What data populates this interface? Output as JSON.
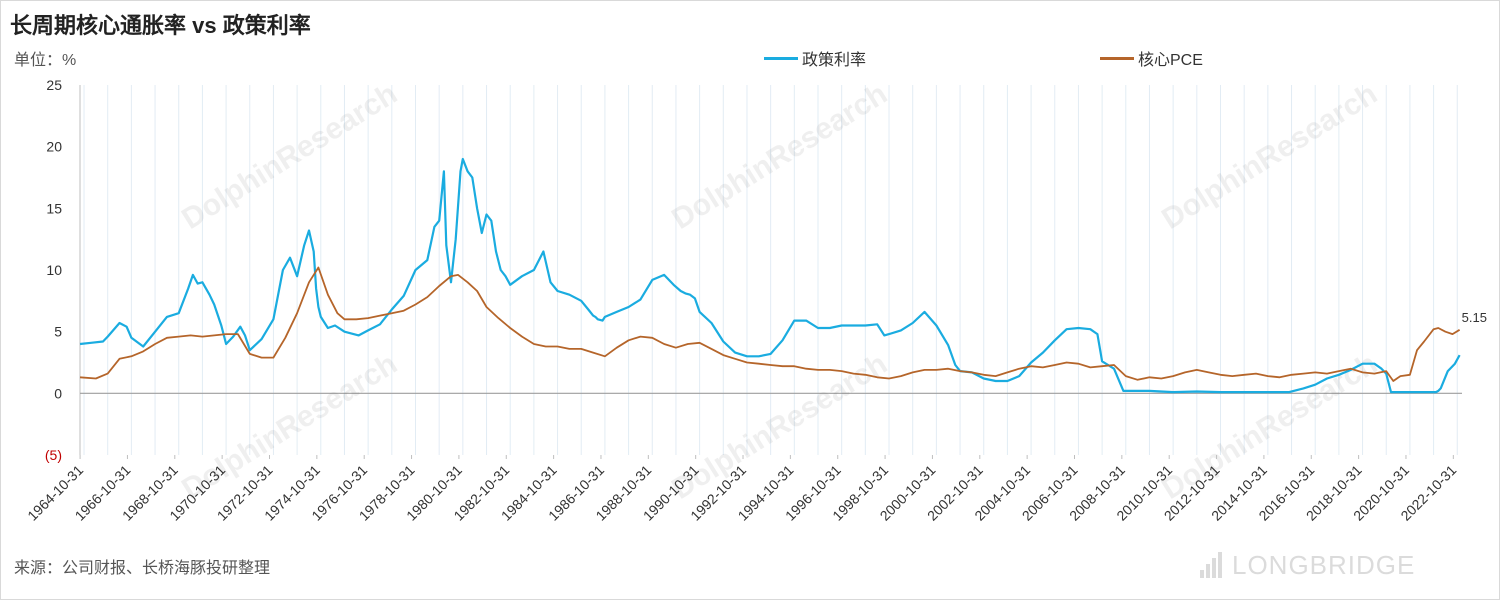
{
  "header": {
    "title": "长周期核心通胀率 vs 政策利率",
    "unit": "单位：%",
    "source": "来源：公司财报、长桥海豚投研整理"
  },
  "legend": {
    "policy_label": "政策利率",
    "pce_label": "核心PCE"
  },
  "watermark": {
    "brand": "LONGBRIDGE"
  },
  "colors": {
    "policy": "#1aace0",
    "pce": "#b5652a",
    "negative_label": "#c00000",
    "grid": "#e2ecf4"
  },
  "chart_data": {
    "type": "line",
    "title": "长周期核心通胀率 vs 政策利率",
    "ylabel": "单位：%",
    "xlabel": "",
    "ylim": [
      -5,
      25
    ],
    "y_ticks": [
      {
        "value": 25,
        "label": "25"
      },
      {
        "value": 20,
        "label": "20"
      },
      {
        "value": 15,
        "label": "15"
      },
      {
        "value": 10,
        "label": "10"
      },
      {
        "value": 5,
        "label": "5"
      },
      {
        "value": 0,
        "label": "0"
      },
      {
        "value": -5,
        "label": "(5)"
      }
    ],
    "x_range": [
      1964.83,
      2023.2
    ],
    "x_tick_labels": [
      "1964-10-31",
      "1966-10-31",
      "1968-10-31",
      "1970-10-31",
      "1972-10-31",
      "1974-10-31",
      "1976-10-31",
      "1978-10-31",
      "1980-10-31",
      "1982-10-31",
      "1984-10-31",
      "1986-10-31",
      "1988-10-31",
      "1990-10-31",
      "1992-10-31",
      "1994-10-31",
      "1996-10-31",
      "1998-10-31",
      "2000-10-31",
      "2002-10-31",
      "2004-10-31",
      "2006-10-31",
      "2008-10-31",
      "2010-10-31",
      "2012-10-31",
      "2014-10-31",
      "2016-10-31",
      "2018-10-31",
      "2020-10-31",
      "2022-10-31"
    ],
    "grid": true,
    "legend_position": "top",
    "end_label": "5.15",
    "series": [
      {
        "name": "政策利率",
        "x": [
          1964.83,
          1965.3,
          1965.8,
          1966.0,
          1966.5,
          1966.8,
          1967.0,
          1967.5,
          1968.0,
          1968.5,
          1969.0,
          1969.4,
          1969.6,
          1969.8,
          1970.0,
          1970.3,
          1970.5,
          1970.8,
          1971.0,
          1971.3,
          1971.6,
          1971.8,
          1972.0,
          1972.5,
          1973.0,
          1973.4,
          1973.7,
          1974.0,
          1974.3,
          1974.5,
          1974.7,
          1974.8,
          1974.9,
          1975.0,
          1975.3,
          1975.6,
          1976.0,
          1976.6,
          1977.0,
          1977.5,
          1978.0,
          1978.5,
          1979.0,
          1979.5,
          1979.8,
          1980.0,
          1980.2,
          1980.3,
          1980.5,
          1980.7,
          1980.9,
          1981.0,
          1981.2,
          1981.4,
          1981.6,
          1981.8,
          1982.0,
          1982.2,
          1982.4,
          1982.6,
          1982.8,
          1983.0,
          1983.5,
          1984.0,
          1984.4,
          1984.7,
          1985.0,
          1985.5,
          1986.0,
          1986.3,
          1986.5,
          1986.6,
          1986.7,
          1986.9,
          1987.0,
          1987.5,
          1988.0,
          1988.5,
          1989.0,
          1989.5,
          1989.9,
          1990.2,
          1990.4,
          1990.6,
          1990.8,
          1991.0,
          1991.5,
          1992.0,
          1992.5,
          1993.0,
          1993.5,
          1994.0,
          1994.5,
          1995.0,
          1995.5,
          1996.0,
          1996.5,
          1997.0,
          1997.5,
          1998.0,
          1998.5,
          1998.8,
          1999.0,
          1999.5,
          2000.0,
          2000.5,
          2001.0,
          2001.5,
          2001.8,
          2002.0,
          2002.5,
          2003.0,
          2003.5,
          2004.0,
          2004.5,
          2005.0,
          2005.5,
          2006.0,
          2006.5,
          2007.0,
          2007.5,
          2007.8,
          2008.0,
          2008.5,
          2008.9,
          2009.5,
          2010.0,
          2011.0,
          2012.0,
          2013.0,
          2014.0,
          2015.0,
          2015.9,
          2016.5,
          2017.0,
          2017.5,
          2018.0,
          2018.5,
          2019.0,
          2019.5,
          2019.8,
          2020.0,
          2020.2,
          2020.5,
          2021.0,
          2021.5,
          2022.0,
          2022.1,
          2022.2,
          2022.3,
          2022.6,
          2022.9,
          2023.1
        ],
        "y": [
          4.0,
          4.1,
          4.2,
          4.6,
          5.7,
          5.4,
          4.5,
          3.8,
          5.0,
          6.2,
          6.5,
          8.5,
          9.6,
          8.9,
          9.0,
          8.0,
          7.2,
          5.5,
          4.0,
          4.6,
          5.4,
          4.7,
          3.5,
          4.4,
          6.0,
          10.0,
          11.0,
          9.5,
          12.0,
          13.2,
          11.5,
          8.5,
          7.0,
          6.2,
          5.3,
          5.5,
          5.0,
          4.7,
          5.1,
          5.6,
          6.8,
          7.9,
          10.0,
          10.8,
          13.5,
          14.0,
          18.0,
          12.0,
          9.0,
          12.5,
          18.0,
          19.0,
          18.0,
          17.5,
          15.0,
          13.0,
          14.5,
          14.0,
          11.5,
          10.0,
          9.5,
          8.8,
          9.5,
          10.0,
          11.5,
          9.0,
          8.3,
          8.0,
          7.5,
          6.8,
          6.3,
          6.2,
          6.0,
          5.9,
          6.2,
          6.6,
          7.0,
          7.6,
          9.2,
          9.6,
          8.8,
          8.3,
          8.1,
          8.0,
          7.7,
          6.6,
          5.7,
          4.2,
          3.3,
          3.0,
          3.0,
          3.2,
          4.3,
          5.9,
          5.9,
          5.3,
          5.3,
          5.5,
          5.5,
          5.5,
          5.6,
          4.7,
          4.8,
          5.1,
          5.7,
          6.6,
          5.5,
          3.9,
          2.3,
          1.8,
          1.7,
          1.2,
          1.0,
          1.0,
          1.4,
          2.5,
          3.3,
          4.3,
          5.2,
          5.3,
          5.2,
          4.8,
          2.6,
          2.0,
          0.2,
          0.2,
          0.2,
          0.1,
          0.15,
          0.1,
          0.1,
          0.1,
          0.1,
          0.4,
          0.7,
          1.2,
          1.5,
          1.9,
          2.4,
          2.4,
          2.0,
          1.6,
          0.1,
          0.1,
          0.1,
          0.1,
          0.1,
          0.1,
          0.2,
          0.4,
          1.8,
          2.4,
          3.1
        ]
      },
      {
        "name": "核心PCE",
        "x": [
          1964.83,
          1965.5,
          1966.0,
          1966.5,
          1967.0,
          1967.5,
          1968.0,
          1968.5,
          1969.0,
          1969.5,
          1970.0,
          1970.5,
          1971.0,
          1971.5,
          1972.0,
          1972.5,
          1973.0,
          1973.5,
          1974.0,
          1974.5,
          1974.9,
          1975.3,
          1975.7,
          1976.0,
          1976.5,
          1977.0,
          1977.5,
          1978.0,
          1978.5,
          1979.0,
          1979.5,
          1980.0,
          1980.5,
          1980.8,
          1981.2,
          1981.6,
          1982.0,
          1982.5,
          1983.0,
          1983.5,
          1984.0,
          1984.5,
          1985.0,
          1985.5,
          1986.0,
          1986.5,
          1987.0,
          1987.5,
          1988.0,
          1988.5,
          1989.0,
          1989.5,
          1990.0,
          1990.5,
          1991.0,
          1991.5,
          1992.0,
          1992.5,
          1993.0,
          1993.5,
          1994.0,
          1994.5,
          1995.0,
          1995.5,
          1996.0,
          1996.5,
          1997.0,
          1997.5,
          1998.0,
          1998.5,
          1999.0,
          1999.5,
          2000.0,
          2000.5,
          2001.0,
          2001.5,
          2002.0,
          2002.5,
          2003.0,
          2003.5,
          2004.0,
          2004.5,
          2005.0,
          2005.5,
          2006.0,
          2006.5,
          2007.0,
          2007.5,
          2008.0,
          2008.5,
          2009.0,
          2009.5,
          2010.0,
          2010.5,
          2011.0,
          2011.5,
          2012.0,
          2012.5,
          2013.0,
          2013.5,
          2014.0,
          2014.5,
          2015.0,
          2015.5,
          2016.0,
          2016.5,
          2017.0,
          2017.5,
          2018.0,
          2018.5,
          2019.0,
          2019.5,
          2020.0,
          2020.3,
          2020.6,
          2021.0,
          2021.3,
          2021.6,
          2022.0,
          2022.2,
          2022.5,
          2022.8,
          2023.1
        ],
        "y": [
          1.3,
          1.2,
          1.6,
          2.8,
          3.0,
          3.4,
          4.0,
          4.5,
          4.6,
          4.7,
          4.6,
          4.7,
          4.8,
          4.8,
          3.2,
          2.9,
          2.9,
          4.5,
          6.5,
          9.0,
          10.2,
          8.0,
          6.5,
          6.0,
          6.0,
          6.1,
          6.3,
          6.5,
          6.7,
          7.2,
          7.8,
          8.7,
          9.5,
          9.6,
          9.0,
          8.3,
          7.0,
          6.1,
          5.3,
          4.6,
          4.0,
          3.8,
          3.8,
          3.6,
          3.6,
          3.3,
          3.0,
          3.7,
          4.3,
          4.6,
          4.5,
          4.0,
          3.7,
          4.0,
          4.1,
          3.6,
          3.1,
          2.8,
          2.5,
          2.4,
          2.3,
          2.2,
          2.2,
          2.0,
          1.9,
          1.9,
          1.8,
          1.6,
          1.5,
          1.3,
          1.2,
          1.4,
          1.7,
          1.9,
          1.9,
          2.0,
          1.8,
          1.7,
          1.5,
          1.4,
          1.7,
          2.0,
          2.2,
          2.1,
          2.3,
          2.5,
          2.4,
          2.1,
          2.2,
          2.3,
          1.4,
          1.1,
          1.3,
          1.2,
          1.4,
          1.7,
          1.9,
          1.7,
          1.5,
          1.4,
          1.5,
          1.6,
          1.4,
          1.3,
          1.5,
          1.6,
          1.7,
          1.6,
          1.8,
          2.0,
          1.7,
          1.6,
          1.8,
          1.0,
          1.4,
          1.5,
          3.5,
          4.2,
          5.2,
          5.3,
          5.0,
          4.8,
          5.15
        ]
      }
    ]
  }
}
